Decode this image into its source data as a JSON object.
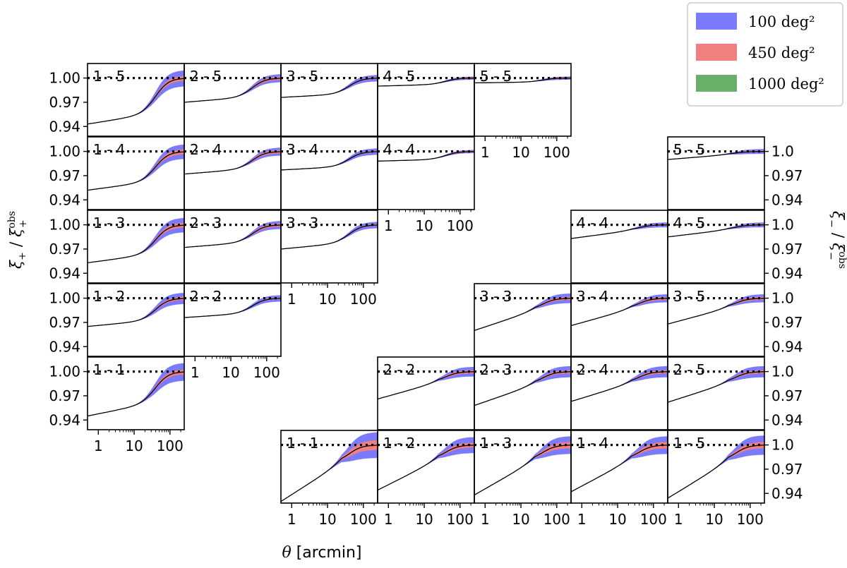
{
  "chart_data": {
    "type": "line",
    "xscale": "log",
    "xlim": [
      0.5,
      250
    ],
    "ylim": [
      0.928,
      1.018
    ],
    "x_ticks": [
      "1",
      "10",
      "100"
    ],
    "y_ticks_left": [
      "1.00",
      "0.97",
      "0.94"
    ],
    "y_ticks_right": [
      "1.0",
      "0.97",
      "0.94"
    ],
    "xlabel": "θ [arcmin]",
    "ylabel_left": "ξ+/ξ+obs",
    "ylabel_right": "ξ−/ξ−obs",
    "reference_line": 1.0,
    "legend": {
      "position": "top-right",
      "entries": [
        {
          "label": "100 deg²",
          "color": "#7b7bff"
        },
        {
          "label": "450 deg²",
          "color": "#f08080"
        },
        {
          "label": "1000 deg²",
          "color": "#6aaf6a"
        }
      ]
    },
    "line_color": "#000000",
    "panels_plus": [
      {
        "label": "1 - 5",
        "ratio_start": 0.943,
        "ratio_plateau": 0.955,
        "band_100": 0.01,
        "band_450": 0.003
      },
      {
        "label": "2 - 5",
        "ratio_start": 0.97,
        "ratio_plateau": 0.976,
        "band_100": 0.005,
        "band_450": 0.002
      },
      {
        "label": "3 - 5",
        "ratio_start": 0.976,
        "ratio_plateau": 0.98,
        "band_100": 0.004,
        "band_450": 0.001
      },
      {
        "label": "4 - 5",
        "ratio_start": 0.99,
        "ratio_plateau": 0.992,
        "band_100": 0.002,
        "band_450": 0.001
      },
      {
        "label": "5 - 5",
        "ratio_start": 0.994,
        "ratio_plateau": 0.995,
        "band_100": 0.002,
        "band_450": 0.001
      },
      {
        "label": "1 - 4",
        "ratio_start": 0.952,
        "ratio_plateau": 0.962,
        "band_100": 0.009,
        "band_450": 0.003
      },
      {
        "label": "2 - 4",
        "ratio_start": 0.972,
        "ratio_plateau": 0.978,
        "band_100": 0.005,
        "band_450": 0.002
      },
      {
        "label": "3 - 4",
        "ratio_start": 0.977,
        "ratio_plateau": 0.981,
        "band_100": 0.004,
        "band_450": 0.001
      },
      {
        "label": "4 - 4",
        "ratio_start": 0.988,
        "ratio_plateau": 0.99,
        "band_100": 0.002,
        "band_450": 0.001
      },
      {
        "label": "1 - 3",
        "ratio_start": 0.953,
        "ratio_plateau": 0.963,
        "band_100": 0.009,
        "band_450": 0.003
      },
      {
        "label": "2 - 3",
        "ratio_start": 0.972,
        "ratio_plateau": 0.978,
        "band_100": 0.005,
        "band_450": 0.002
      },
      {
        "label": "3 - 3",
        "ratio_start": 0.97,
        "ratio_plateau": 0.977,
        "band_100": 0.004,
        "band_450": 0.001
      },
      {
        "label": "1 - 2",
        "ratio_start": 0.965,
        "ratio_plateau": 0.972,
        "band_100": 0.007,
        "band_450": 0.002
      },
      {
        "label": "2 - 2",
        "ratio_start": 0.976,
        "ratio_plateau": 0.981,
        "band_100": 0.004,
        "band_450": 0.001
      },
      {
        "label": "1 - 1",
        "ratio_start": 0.945,
        "ratio_plateau": 0.96,
        "band_100": 0.011,
        "band_450": 0.003
      }
    ],
    "panels_minus": [
      {
        "label": "5 - 5",
        "ratio_start": 0.99,
        "ratio_plateau": 0.996,
        "band_100": 0.003,
        "band_450": 0.001
      },
      {
        "label": "4 - 4",
        "ratio_start": 0.983,
        "ratio_plateau": 0.993,
        "band_100": 0.003,
        "band_450": 0.001
      },
      {
        "label": "4 - 5",
        "ratio_start": 0.985,
        "ratio_plateau": 0.994,
        "band_100": 0.003,
        "band_450": 0.001
      },
      {
        "label": "3 - 3",
        "ratio_start": 0.96,
        "ratio_plateau": 0.985,
        "band_100": 0.006,
        "band_450": 0.002
      },
      {
        "label": "3 - 4",
        "ratio_start": 0.966,
        "ratio_plateau": 0.987,
        "band_100": 0.005,
        "band_450": 0.002
      },
      {
        "label": "3 - 5",
        "ratio_start": 0.968,
        "ratio_plateau": 0.988,
        "band_100": 0.005,
        "band_450": 0.002
      },
      {
        "label": "2 - 2",
        "ratio_start": 0.966,
        "ratio_plateau": 0.987,
        "band_100": 0.006,
        "band_450": 0.002
      },
      {
        "label": "2 - 3",
        "ratio_start": 0.958,
        "ratio_plateau": 0.984,
        "band_100": 0.007,
        "band_450": 0.002
      },
      {
        "label": "2 - 4",
        "ratio_start": 0.963,
        "ratio_plateau": 0.986,
        "band_100": 0.007,
        "band_450": 0.002
      },
      {
        "label": "2 - 5",
        "ratio_start": 0.962,
        "ratio_plateau": 0.986,
        "band_100": 0.007,
        "band_450": 0.002
      },
      {
        "label": "1 - 1",
        "ratio_start": 0.93,
        "ratio_plateau": 0.978,
        "band_100": 0.016,
        "band_450": 0.006
      },
      {
        "label": "1 - 2",
        "ratio_start": 0.944,
        "ratio_plateau": 0.982,
        "band_100": 0.01,
        "band_450": 0.003
      },
      {
        "label": "1 - 3",
        "ratio_start": 0.938,
        "ratio_plateau": 0.981,
        "band_100": 0.011,
        "band_450": 0.004
      },
      {
        "label": "1 - 4",
        "ratio_start": 0.942,
        "ratio_plateau": 0.982,
        "band_100": 0.011,
        "band_450": 0.004
      },
      {
        "label": "1 - 5",
        "ratio_start": 0.934,
        "ratio_plateau": 0.98,
        "band_100": 0.012,
        "band_450": 0.004
      }
    ]
  }
}
